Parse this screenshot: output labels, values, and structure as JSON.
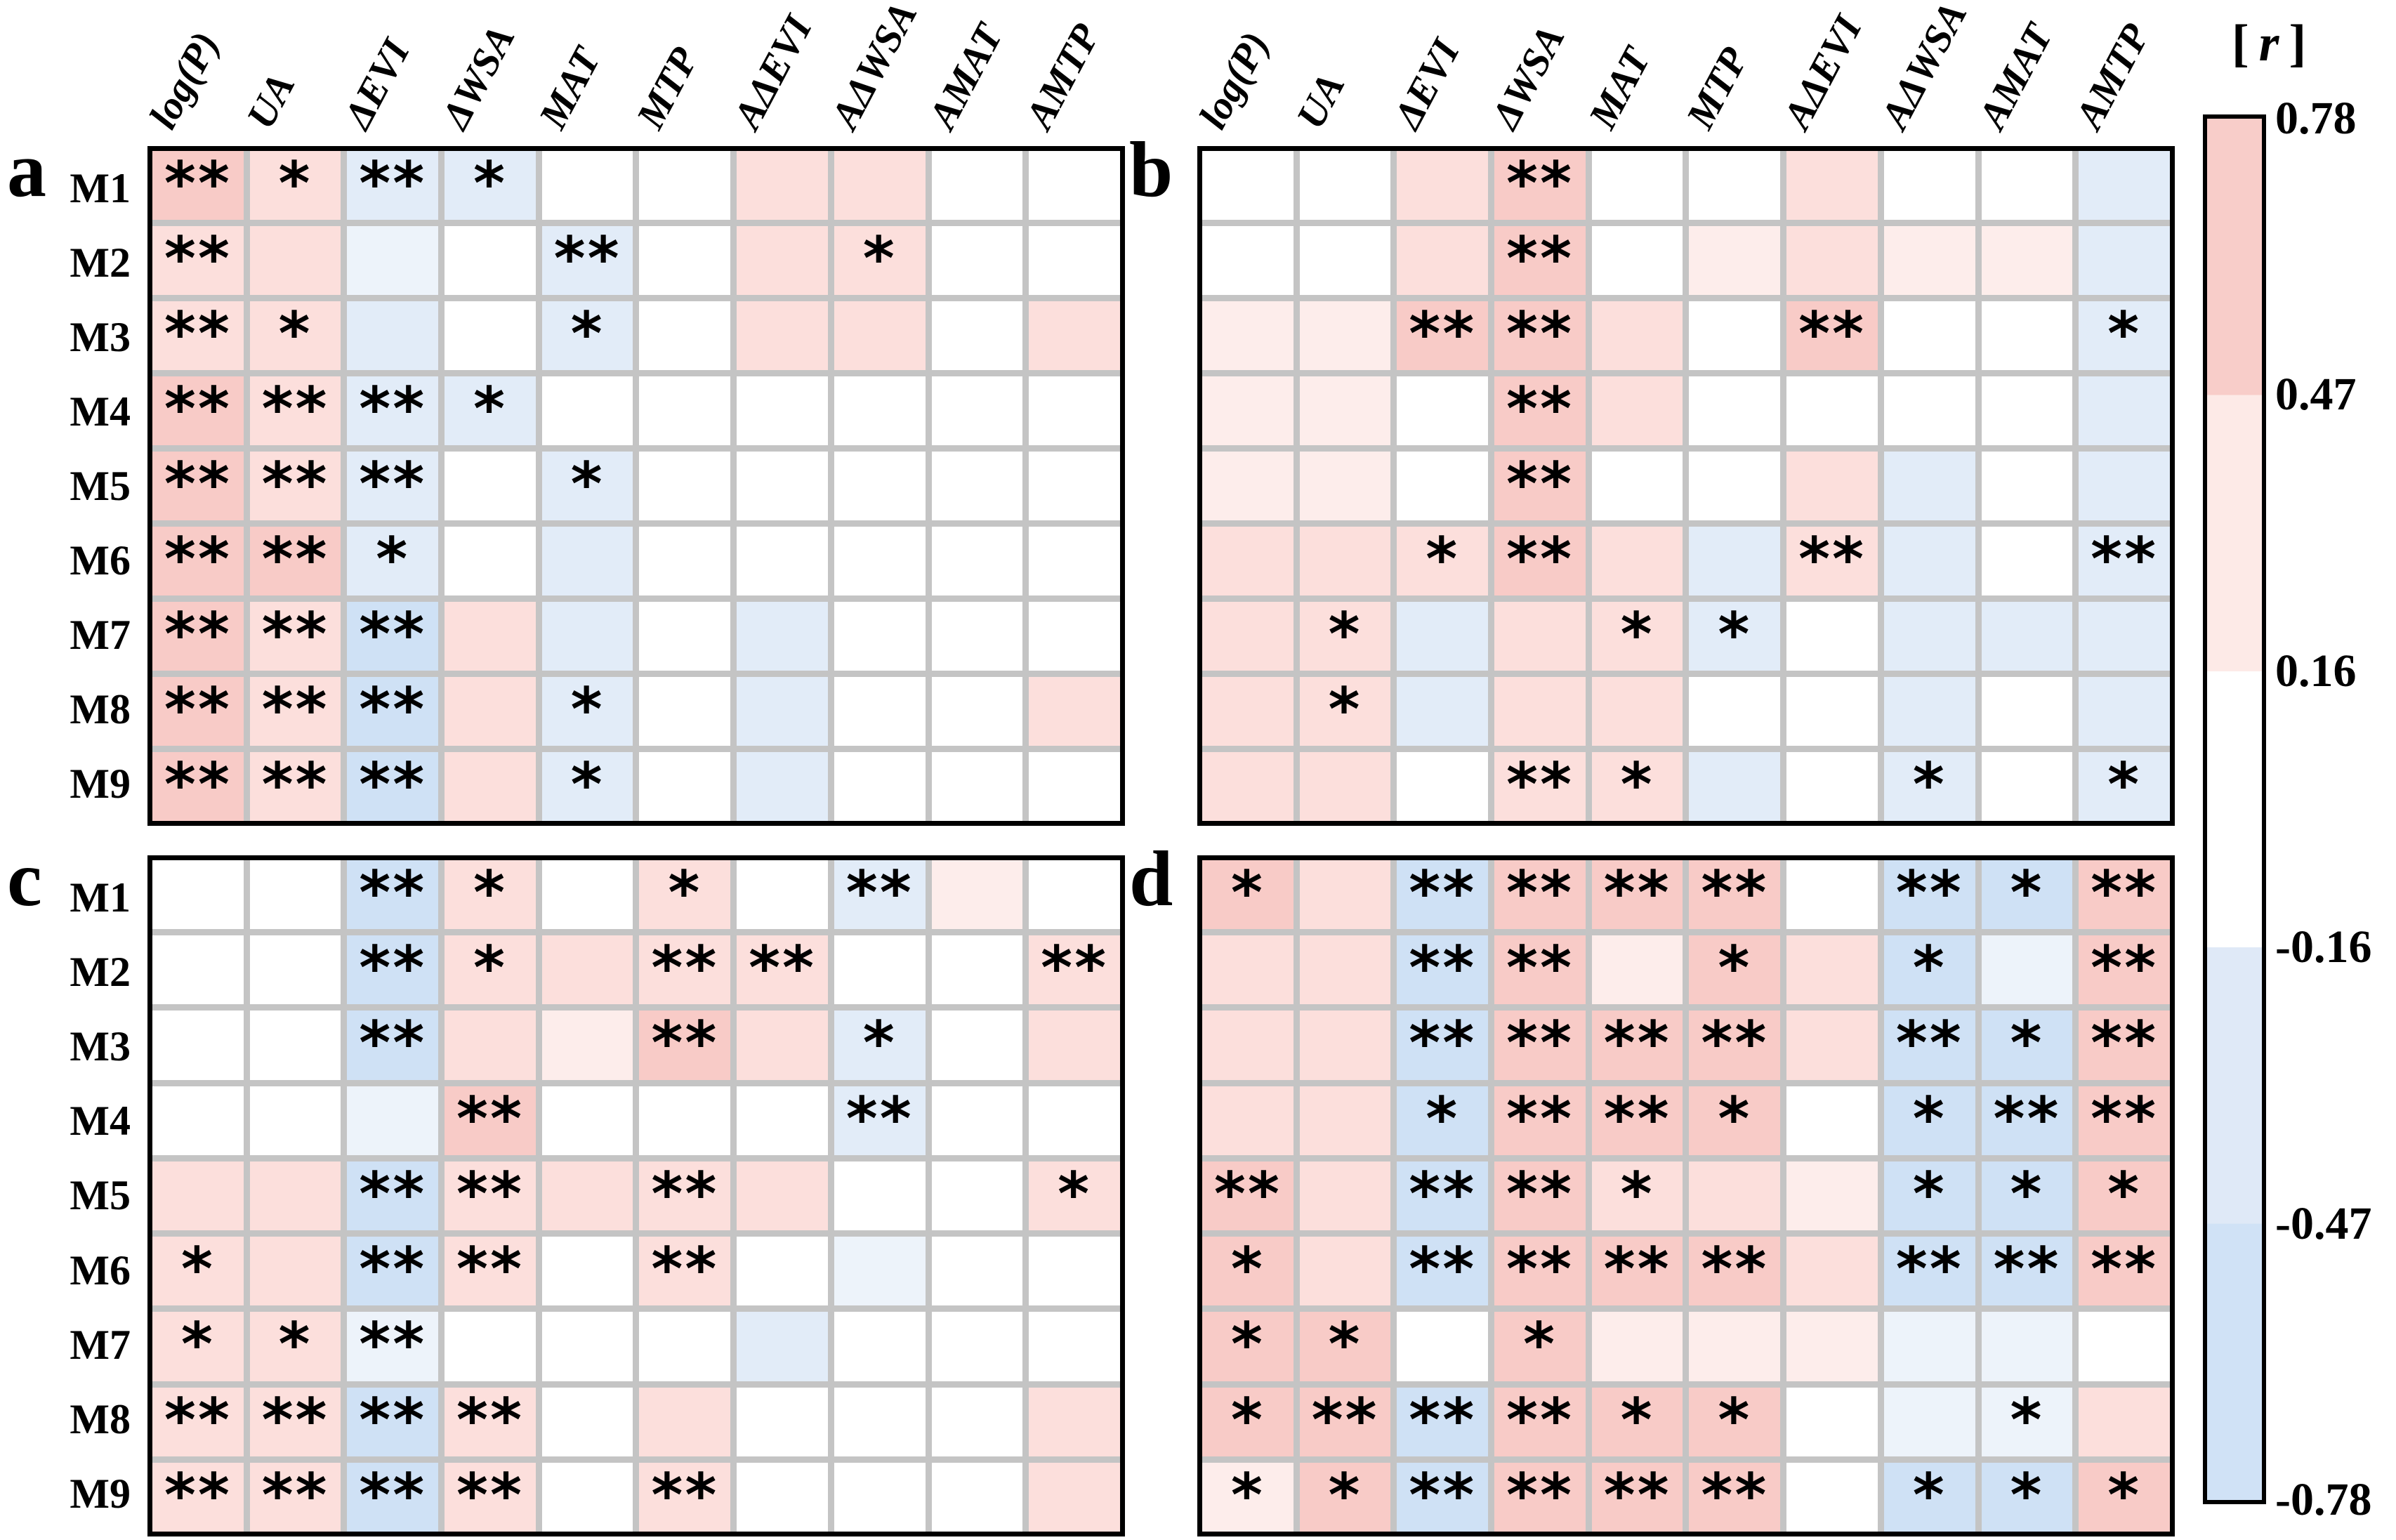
{
  "chart_data": {
    "type": "heatmap",
    "description": "Four-panel correlation heatmap (panels a, b, c, d); cell color encodes Pearson r per colorbar bands; asterisks mark significance.",
    "rows": [
      "M1",
      "M2",
      "M3",
      "M4",
      "M5",
      "M6",
      "M7",
      "M8",
      "M9"
    ],
    "columns": [
      "log(P)",
      "UA",
      "ΔEVI",
      "ΔWSA",
      "MAT",
      "MTP",
      "AΔEVI",
      "AΔWSA",
      "AMAT",
      "AMTP"
    ],
    "colorbar": {
      "title_left": "[",
      "title_symbol": "r",
      "title_right": "]",
      "ticks": [
        "0.78",
        "0.47",
        "0.16",
        "-0.16",
        "-0.47",
        "-0.78"
      ],
      "bands_top_to_bottom": [
        {
          "r_range": [
            0.47,
            0.78
          ],
          "color": "#f8cdc9"
        },
        {
          "r_range": [
            0.16,
            0.47
          ],
          "color": "#fdeae7"
        },
        {
          "r_range": [
            -0.16,
            0.16
          ],
          "color": "#ffffff"
        },
        {
          "r_range": [
            -0.47,
            -0.16
          ],
          "color": "#dfe9f7"
        },
        {
          "r_range": [
            -0.78,
            -0.47
          ],
          "color": "#d0e2f6"
        }
      ]
    },
    "legend_levels": {
      "P2": {
        "color": "#f8cbc7",
        "r_est": 0.55
      },
      "P1": {
        "color": "#fcdfdc",
        "r_est": 0.3
      },
      "P0": {
        "color": "#fdedeb",
        "r_est": 0.2
      },
      "W": {
        "color": "#ffffff",
        "r_est": 0.0
      },
      "N0": {
        "color": "#edf3fa",
        "r_est": -0.2
      },
      "N1": {
        "color": "#e2ecf8",
        "r_est": -0.3
      },
      "N2": {
        "color": "#cfe1f5",
        "r_est": -0.55
      }
    },
    "panels": [
      {
        "label": "a",
        "col_headers": true,
        "row_labels": true,
        "cells": [
          [
            "P2**",
            "P1*",
            "N1**",
            "N1*",
            "W",
            "W",
            "P1",
            "P1",
            "W",
            "W"
          ],
          [
            "P1**",
            "P1",
            "N0",
            "W",
            "N1**",
            "W",
            "P1",
            "P1*",
            "W",
            "W"
          ],
          [
            "P1**",
            "P1*",
            "N1",
            "W",
            "N1*",
            "W",
            "P1",
            "P1",
            "W",
            "P1"
          ],
          [
            "P2**",
            "P1**",
            "N1**",
            "N1*",
            "W",
            "W",
            "W",
            "W",
            "W",
            "W"
          ],
          [
            "P2**",
            "P1**",
            "N1**",
            "W",
            "N1*",
            "W",
            "W",
            "W",
            "W",
            "W"
          ],
          [
            "P2**",
            "P2**",
            "N1*",
            "W",
            "N1",
            "W",
            "W",
            "W",
            "W",
            "W"
          ],
          [
            "P2**",
            "P1**",
            "N2**",
            "P1",
            "N1",
            "W",
            "N1",
            "W",
            "W",
            "W"
          ],
          [
            "P2**",
            "P1**",
            "N2**",
            "P1",
            "N1*",
            "W",
            "N1",
            "W",
            "W",
            "P1"
          ],
          [
            "P2**",
            "P1**",
            "N2**",
            "P1",
            "N1*",
            "W",
            "N1",
            "W",
            "W",
            "W"
          ]
        ]
      },
      {
        "label": "b",
        "col_headers": true,
        "row_labels": false,
        "cells": [
          [
            "W",
            "W",
            "P1",
            "P2**",
            "W",
            "W",
            "P1",
            "W",
            "W",
            "N1"
          ],
          [
            "W",
            "W",
            "P1",
            "P2**",
            "W",
            "P0",
            "P1",
            "P0",
            "P0",
            "N1"
          ],
          [
            "P0",
            "P0",
            "P2**",
            "P2**",
            "P1",
            "W",
            "P2**",
            "W",
            "W",
            "N1*"
          ],
          [
            "P0",
            "P0",
            "W",
            "P2**",
            "P1",
            "W",
            "W",
            "W",
            "W",
            "N1"
          ],
          [
            "P0",
            "P0",
            "W",
            "P2**",
            "W",
            "W",
            "P1",
            "N1",
            "W",
            "N1"
          ],
          [
            "P1",
            "P1",
            "P1*",
            "P2**",
            "P1",
            "N1",
            "P1**",
            "N1",
            "W",
            "N1**"
          ],
          [
            "P1",
            "P1*",
            "N1",
            "P1",
            "P1*",
            "N1*",
            "W",
            "N1",
            "N1",
            "N1"
          ],
          [
            "P1",
            "P1*",
            "N1",
            "P1",
            "P1",
            "W",
            "W",
            "N1",
            "W",
            "N1"
          ],
          [
            "P1",
            "P1",
            "W",
            "P1**",
            "P1*",
            "N1",
            "W",
            "N1*",
            "W",
            "N1*"
          ]
        ]
      },
      {
        "label": "c",
        "col_headers": false,
        "row_labels": true,
        "cells": [
          [
            "W",
            "W",
            "N2**",
            "P1*",
            "W",
            "P1*",
            "W",
            "N1**",
            "P0",
            "W"
          ],
          [
            "W",
            "W",
            "N2**",
            "P1*",
            "P1",
            "P1**",
            "P1**",
            "W",
            "W",
            "P1**"
          ],
          [
            "W",
            "W",
            "N2**",
            "P1",
            "P0",
            "P2**",
            "P1",
            "N1*",
            "W",
            "P1"
          ],
          [
            "W",
            "W",
            "N0",
            "P2**",
            "W",
            "W",
            "W",
            "N1**",
            "W",
            "W"
          ],
          [
            "P1",
            "P1",
            "N2**",
            "P1**",
            "P1",
            "P1**",
            "P1",
            "W",
            "W",
            "P1*"
          ],
          [
            "P1*",
            "P1",
            "N2**",
            "P1**",
            "W",
            "P1**",
            "W",
            "N0",
            "W",
            "W"
          ],
          [
            "P1*",
            "P1*",
            "N0**",
            "W",
            "W",
            "W",
            "N1",
            "W",
            "W",
            "W"
          ],
          [
            "P1**",
            "P1**",
            "N2**",
            "P1**",
            "W",
            "P1",
            "W",
            "W",
            "W",
            "P1"
          ],
          [
            "P1**",
            "P1**",
            "N2**",
            "P1**",
            "W",
            "P1**",
            "W",
            "W",
            "W",
            "P1"
          ]
        ]
      },
      {
        "label": "d",
        "col_headers": false,
        "row_labels": false,
        "cells": [
          [
            "P2*",
            "P1",
            "N2**",
            "P2**",
            "P2**",
            "P2**",
            "W",
            "N2**",
            "N2*",
            "P2**"
          ],
          [
            "P1",
            "P1",
            "N2**",
            "P2**",
            "P0",
            "P2*",
            "P1",
            "N2*",
            "N0",
            "P2**"
          ],
          [
            "P1",
            "P1",
            "N2**",
            "P2**",
            "P2**",
            "P2**",
            "P1",
            "N2**",
            "N2*",
            "P2**"
          ],
          [
            "P1",
            "P1",
            "N2*",
            "P2**",
            "P2**",
            "P2*",
            "W",
            "N2*",
            "N2**",
            "P2**"
          ],
          [
            "P2**",
            "P1",
            "N2**",
            "P2**",
            "P1*",
            "P1",
            "P0",
            "N2*",
            "N2*",
            "P2*"
          ],
          [
            "P2*",
            "P1",
            "N2**",
            "P2**",
            "P2**",
            "P2**",
            "P1",
            "N2**",
            "N2**",
            "P2**"
          ],
          [
            "P2*",
            "P2*",
            "W",
            "P2*",
            "P0",
            "P0",
            "P0",
            "N0",
            "N0",
            "W"
          ],
          [
            "P2*",
            "P2**",
            "N2**",
            "P2**",
            "P2*",
            "P2*",
            "W",
            "N0",
            "N0*",
            "P1"
          ],
          [
            "P0*",
            "P2*",
            "N2**",
            "P2**",
            "P2**",
            "P2**",
            "W",
            "N2*",
            "N2*",
            "P2*"
          ]
        ]
      }
    ]
  }
}
